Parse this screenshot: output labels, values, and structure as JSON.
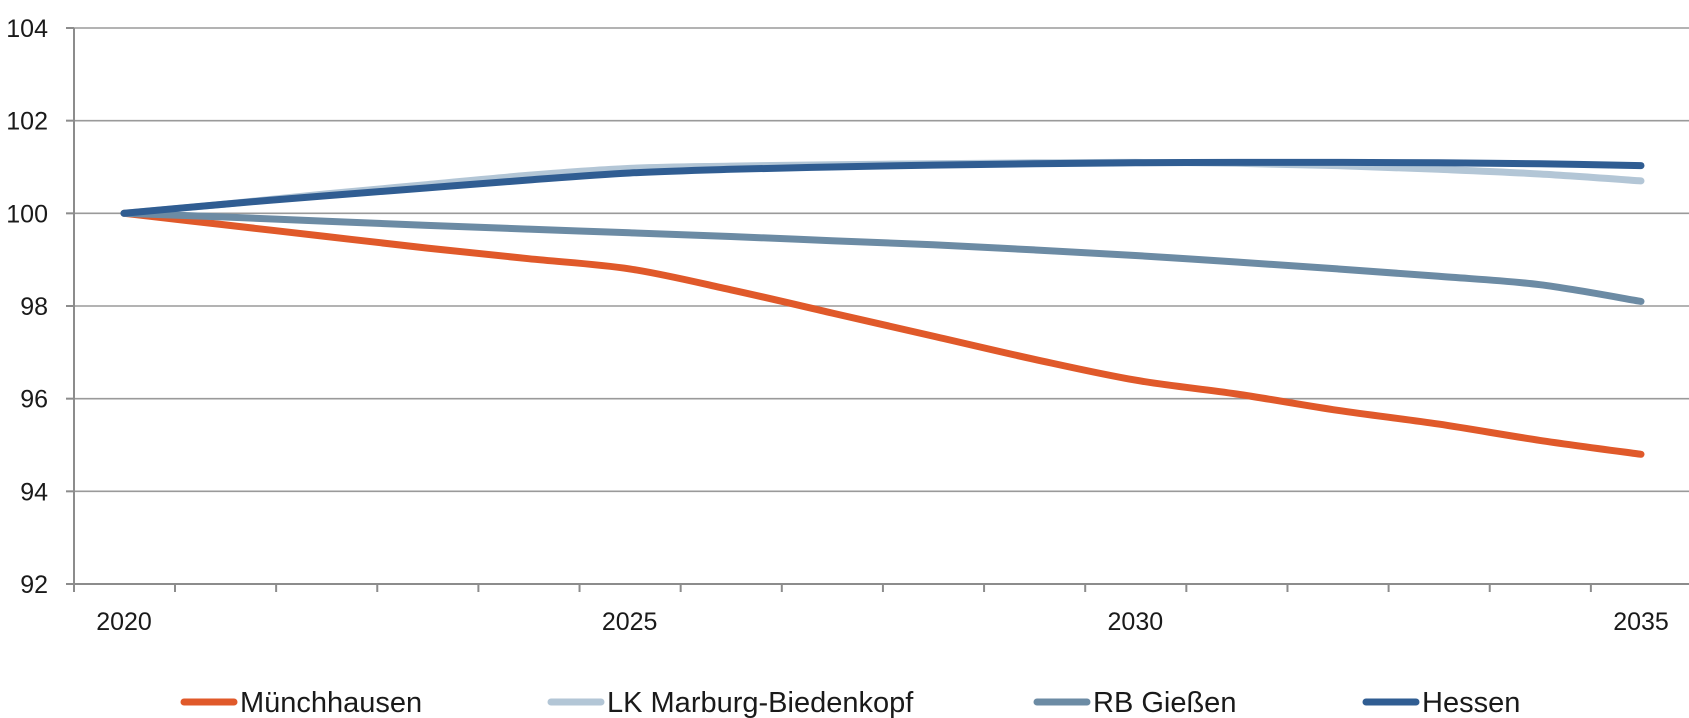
{
  "chart_data": {
    "type": "line",
    "title": "",
    "xlabel": "",
    "ylabel": "",
    "x": [
      2020,
      2021,
      2022,
      2023,
      2024,
      2025,
      2026,
      2027,
      2028,
      2029,
      2030,
      2031,
      2032,
      2033,
      2034,
      2035
    ],
    "x_tick_labels": [
      "2020",
      "2025",
      "2030",
      "2035"
    ],
    "y_tick_labels": [
      "92",
      "94",
      "96",
      "98",
      "100",
      "102",
      "104"
    ],
    "ylim": [
      92,
      104
    ],
    "xlim": [
      2020,
      2035
    ],
    "grid": "horizontal",
    "legend": "bottom",
    "series": [
      {
        "name": "Münchhausen",
        "color": "#e0592a",
        "values": [
          100.0,
          99.75,
          99.5,
          99.25,
          99.02,
          98.8,
          98.35,
          97.85,
          97.35,
          96.85,
          96.4,
          96.1,
          95.75,
          95.45,
          95.1,
          94.8
        ]
      },
      {
        "name": "LK Marburg-Biedenkopf",
        "color": "#b3c6d6",
        "values": [
          100.0,
          100.2,
          100.42,
          100.62,
          100.82,
          100.97,
          101.02,
          101.05,
          101.07,
          101.09,
          101.1,
          101.08,
          101.03,
          100.95,
          100.85,
          100.7
        ]
      },
      {
        "name": "RB Gießen",
        "color": "#6c8ba4",
        "values": [
          100.0,
          99.92,
          99.83,
          99.74,
          99.66,
          99.58,
          99.5,
          99.41,
          99.32,
          99.21,
          99.09,
          98.95,
          98.8,
          98.64,
          98.46,
          98.1
        ]
      },
      {
        "name": "Hessen",
        "color": "#305d92",
        "values": [
          100.0,
          100.2,
          100.38,
          100.55,
          100.72,
          100.87,
          100.95,
          101.0,
          101.04,
          101.07,
          101.09,
          101.1,
          101.1,
          101.09,
          101.07,
          101.03
        ]
      }
    ]
  }
}
